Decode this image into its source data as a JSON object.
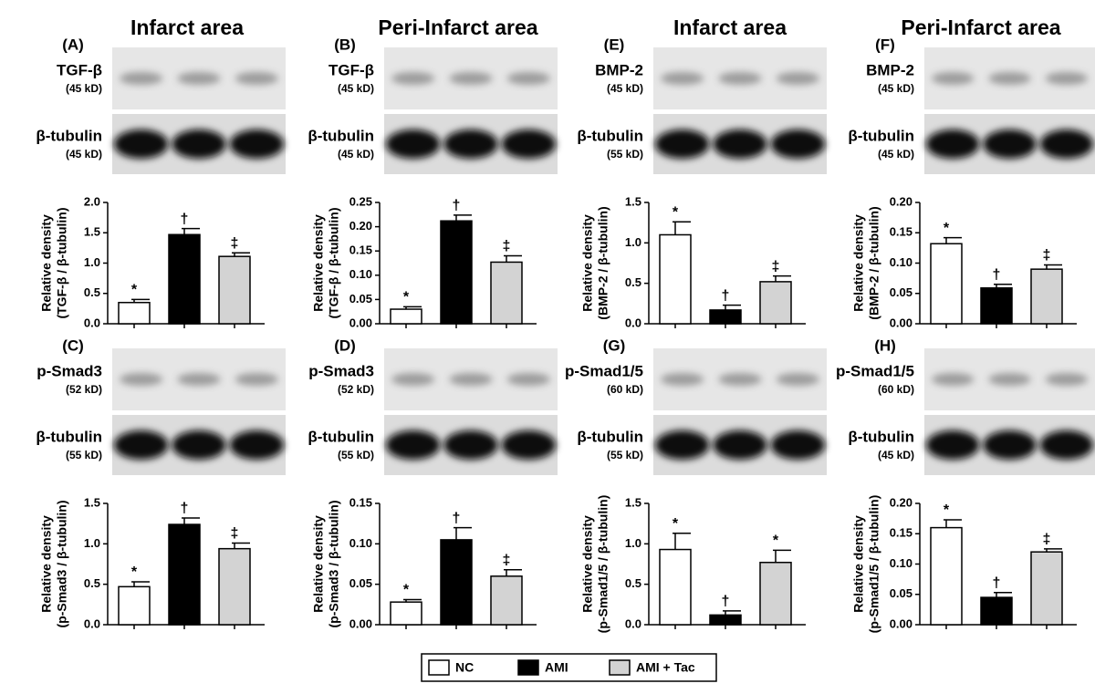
{
  "headers": [
    "Infarct area",
    "Peri-Infarct area",
    "Infarct area",
    "Peri-Infarct area"
  ],
  "legend": [
    {
      "name": "NC",
      "color": "#ffffff"
    },
    {
      "name": "AMI",
      "color": "#000000"
    },
    {
      "name": "AMI + Tac",
      "color": "#d3d3d3"
    }
  ],
  "chart_data": [
    {
      "type": "bar",
      "panel": "(A)",
      "blots": [
        {
          "label": "TGF-β",
          "size": "(45 kD)"
        },
        {
          "label": "β-tubulin",
          "size": "(45 kD)"
        }
      ],
      "ylabel": [
        "Relative density",
        "(TGF-β / β-tubulin)"
      ],
      "ylim": [
        0,
        2
      ],
      "yticks": [
        {
          "value": 0,
          "label": "0.0"
        },
        0.5,
        {
          "value": 1,
          "label": "1.0"
        },
        1.5,
        {
          "value": 2,
          "label": "2.0"
        }
      ],
      "values": [
        0.35,
        1.47,
        1.11
      ],
      "errors": [
        0.05,
        0.1,
        0.06
      ],
      "annotations": [
        "*",
        "†",
        "‡"
      ]
    },
    {
      "type": "bar",
      "panel": "(B)",
      "blots": [
        {
          "label": "TGF-β",
          "size": "(45 kD)"
        },
        {
          "label": "β-tubulin",
          "size": "(45 kD)"
        }
      ],
      "ylabel": [
        "Relative density",
        "(TGF-β / β-tubulin)"
      ],
      "ylim": [
        0,
        0.25
      ],
      "yticks": [
        {
          "value": 0,
          "label": "0.00"
        },
        0.05,
        {
          "value": 0.1,
          "label": "0.10"
        },
        0.15,
        {
          "value": 0.2,
          "label": "0.20"
        },
        0.25
      ],
      "values": [
        0.03,
        0.212,
        0.127
      ],
      "errors": [
        0.005,
        0.012,
        0.013
      ],
      "annotations": [
        "*",
        "†",
        "‡"
      ]
    },
    {
      "type": "bar",
      "panel": "(E)",
      "blots": [
        {
          "label": "BMP-2",
          "size": "(45 kD)"
        },
        {
          "label": "β-tubulin",
          "size": "(55 kD)"
        }
      ],
      "ylabel": [
        "Relative density",
        "(BMP-2 / β-tubulin)"
      ],
      "ylim": [
        0,
        1.5
      ],
      "yticks": [
        {
          "value": 0,
          "label": "0.0"
        },
        0.5,
        {
          "value": 1,
          "label": "1.0"
        },
        1.5
      ],
      "values": [
        1.1,
        0.17,
        0.52
      ],
      "errors": [
        0.16,
        0.06,
        0.07
      ],
      "annotations": [
        "*",
        "†",
        "‡"
      ]
    },
    {
      "type": "bar",
      "panel": "(F)",
      "blots": [
        {
          "label": "BMP-2",
          "size": "(45 kD)"
        },
        {
          "label": "β-tubulin",
          "size": "(45 kD)"
        }
      ],
      "ylabel": [
        "Relative density",
        "(BMP-2 / β-tubulin)"
      ],
      "ylim": [
        0,
        0.2
      ],
      "yticks": [
        {
          "value": 0,
          "label": "0.00"
        },
        0.05,
        {
          "value": 0.1,
          "label": "0.10"
        },
        0.15,
        {
          "value": 0.2,
          "label": "0.20"
        }
      ],
      "values": [
        0.132,
        0.059,
        0.09
      ],
      "errors": [
        0.01,
        0.006,
        0.007
      ],
      "annotations": [
        "*",
        "†",
        "‡"
      ]
    },
    {
      "type": "bar",
      "panel": "(C)",
      "blots": [
        {
          "label": "p-Smad3",
          "size": "(52 kD)"
        },
        {
          "label": "β-tubulin",
          "size": "(55 kD)"
        }
      ],
      "ylabel": [
        "Relative density",
        "(p-Smad3 / β-tubulin)"
      ],
      "ylim": [
        0,
        1.5
      ],
      "yticks": [
        {
          "value": 0,
          "label": "0.0"
        },
        0.5,
        {
          "value": 1,
          "label": "1.0"
        },
        1.5
      ],
      "values": [
        0.47,
        1.24,
        0.94
      ],
      "errors": [
        0.06,
        0.08,
        0.07
      ],
      "annotations": [
        "*",
        "†",
        "‡"
      ]
    },
    {
      "type": "bar",
      "panel": "(D)",
      "blots": [
        {
          "label": "p-Smad3",
          "size": "(52 kD)"
        },
        {
          "label": "β-tubulin",
          "size": "(55 kD)"
        }
      ],
      "ylabel": [
        "Relative density",
        "(p-Smad3 / β-tubulin)"
      ],
      "ylim": [
        0,
        0.15
      ],
      "yticks": [
        {
          "value": 0,
          "label": "0.00"
        },
        0.05,
        {
          "value": 0.1,
          "label": "0.10"
        },
        0.15
      ],
      "values": [
        0.028,
        0.105,
        0.06
      ],
      "errors": [
        0.003,
        0.015,
        0.008
      ],
      "annotations": [
        "*",
        "†",
        "‡"
      ]
    },
    {
      "type": "bar",
      "panel": "(G)",
      "blots": [
        {
          "label": "p-Smad1/5",
          "size": "(60 kD)"
        },
        {
          "label": "β-tubulin",
          "size": "(55 kD)"
        }
      ],
      "ylabel": [
        "Relative density",
        "(p-Smad1/5 / β-tubulin)"
      ],
      "ylim": [
        0,
        1.5
      ],
      "yticks": [
        {
          "value": 0,
          "label": "0.0"
        },
        0.5,
        {
          "value": 1,
          "label": "1.0"
        },
        1.5
      ],
      "values": [
        0.93,
        0.12,
        0.77
      ],
      "errors": [
        0.2,
        0.05,
        0.15
      ],
      "annotations": [
        "*",
        "†",
        "*"
      ]
    },
    {
      "type": "bar",
      "panel": "(H)",
      "blots": [
        {
          "label": "p-Smad1/5",
          "size": "(60 kD)"
        },
        {
          "label": "β-tubulin",
          "size": "(45 kD)"
        }
      ],
      "ylabel": [
        "Relative density",
        "(p-Smad1/5 / β-tubulin)"
      ],
      "ylim": [
        0,
        0.2
      ],
      "yticks": [
        {
          "value": 0,
          "label": "0.00"
        },
        0.05,
        {
          "value": 0.1,
          "label": "0.10"
        },
        0.15,
        {
          "value": 0.2,
          "label": "0.20"
        }
      ],
      "values": [
        0.16,
        0.045,
        0.12
      ],
      "errors": [
        0.013,
        0.008,
        0.005
      ],
      "annotations": [
        "*",
        "†",
        "‡"
      ]
    }
  ]
}
